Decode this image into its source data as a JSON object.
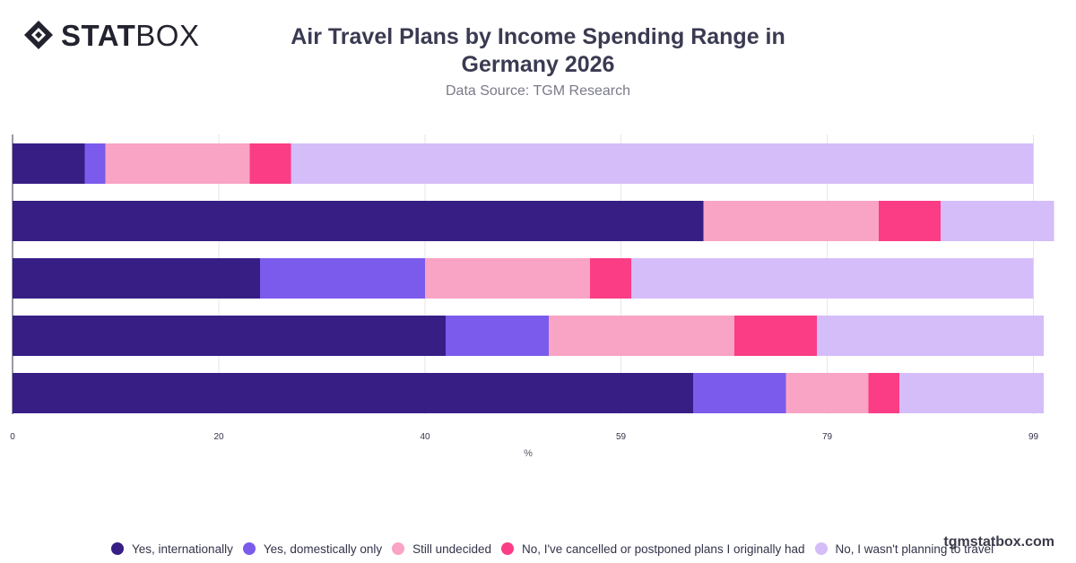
{
  "brand": {
    "logo_stat": "STAT",
    "logo_box": "BOX"
  },
  "header": {
    "title_line1": "Air Travel Plans by Income Spending Range in",
    "title_line2": "Germany 2026",
    "subtitle": "Data Source: TGM Research"
  },
  "watermark": "tgmstatbox.com",
  "colors": {
    "yes_international": "#371e85",
    "yes_domestic": "#7b5bec",
    "undecided": "#f9a3c5",
    "cancelled": "#fa3d85",
    "not_planning": "#d4bdf9",
    "gridline": "#e6e6ea",
    "axis": "#33334a"
  },
  "chart_data": {
    "type": "bar",
    "orientation": "horizontal",
    "stacked": true,
    "xlabel": "%",
    "xlim": [
      0,
      100
    ],
    "x_ticks": [
      0,
      20,
      40,
      59,
      79,
      99
    ],
    "categories": [
      "",
      "",
      "",
      "",
      ""
    ],
    "series": [
      {
        "name": "Yes, internationally",
        "color_key": "yes_international",
        "values": [
          7,
          67,
          24,
          42,
          66
        ]
      },
      {
        "name": "Yes, domestically only",
        "color_key": "yes_domestic",
        "values": [
          2,
          0,
          16,
          10,
          9
        ]
      },
      {
        "name": "Still undecided",
        "color_key": "undecided",
        "values": [
          14,
          17,
          16,
          18,
          8
        ]
      },
      {
        "name": "No, I've cancelled or postponed plans I originally had",
        "color_key": "cancelled",
        "values": [
          4,
          6,
          4,
          8,
          3
        ]
      },
      {
        "name": "No, I wasn't planning to travel",
        "color_key": "not_planning",
        "values": [
          72,
          11,
          39,
          22,
          14
        ]
      }
    ],
    "grid": true,
    "legend_position": "bottom"
  }
}
